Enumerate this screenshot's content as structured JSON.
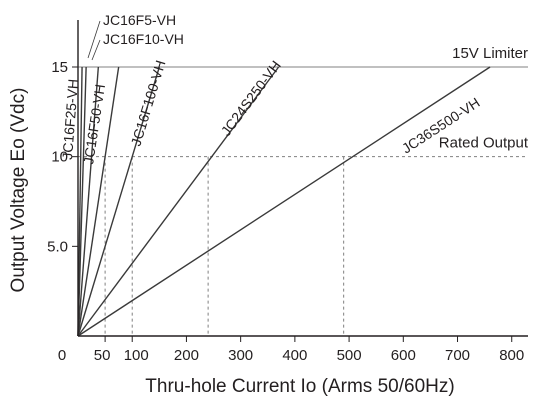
{
  "chart_data": {
    "type": "line",
    "title": "",
    "xlabel": "Thru-hole Current Io (Arms 50/60Hz)",
    "ylabel": "Output Voltage Eo (Vdc)",
    "xlim": [
      0,
      830
    ],
    "ylim": [
      0,
      17
    ],
    "grid": false,
    "x_ticks": [
      {
        "value": 0,
        "label": "0"
      },
      {
        "value": 50,
        "label": "50"
      },
      {
        "value": 100,
        "label": "100"
      },
      {
        "value": 200,
        "label": "200"
      },
      {
        "value": 300,
        "label": "300"
      },
      {
        "value": 400,
        "label": "400"
      },
      {
        "value": 500,
        "label": "500"
      },
      {
        "value": 600,
        "label": "600"
      },
      {
        "value": 700,
        "label": "700"
      },
      {
        "value": 800,
        "label": "800"
      }
    ],
    "y_ticks": [
      {
        "value": 5,
        "label": "5.0"
      },
      {
        "value": 10,
        "label": "10"
      },
      {
        "value": 15,
        "label": "15"
      }
    ],
    "reference_lines": [
      {
        "name": "15V Limiter",
        "y": 15
      },
      {
        "name": "Rated Output",
        "y": 10
      }
    ],
    "series": [
      {
        "name": "JC16F5-VH",
        "rated_current": 5,
        "points": [
          [
            0,
            0
          ],
          [
            7.5,
            15
          ]
        ]
      },
      {
        "name": "JC16F10-VH",
        "rated_current": 10,
        "points": [
          [
            0,
            0
          ],
          [
            15,
            15
          ]
        ]
      },
      {
        "name": "JC16F25-VH",
        "rated_current": 25,
        "points": [
          [
            0,
            0
          ],
          [
            37.5,
            15
          ]
        ]
      },
      {
        "name": "JC16F50-VH",
        "rated_current": 50,
        "points": [
          [
            0,
            0
          ],
          [
            75,
            15
          ]
        ]
      },
      {
        "name": "JC16F100-VH",
        "rated_current": 100,
        "points": [
          [
            0,
            0
          ],
          [
            150,
            15
          ]
        ]
      },
      {
        "name": "JC24S250-VH",
        "rated_current": 240,
        "points": [
          [
            0,
            0
          ],
          [
            370,
            15
          ]
        ]
      },
      {
        "name": "JC36S500-VH",
        "rated_current": 490,
        "points": [
          [
            0,
            0
          ],
          [
            760,
            15
          ]
        ]
      }
    ]
  }
}
